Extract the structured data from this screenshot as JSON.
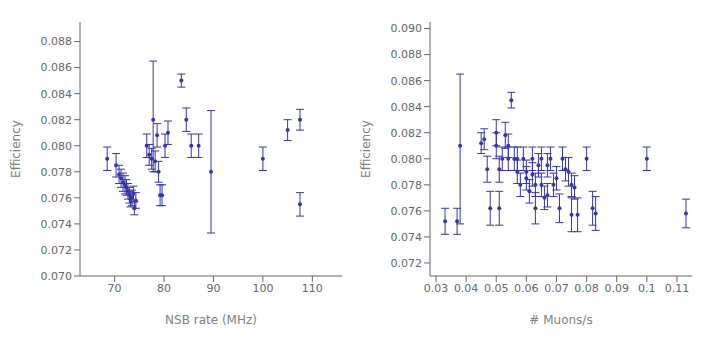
{
  "chart_data": [
    {
      "type": "scatter",
      "x_label": "NSB rate (MHz)",
      "y_label": "Efficiency",
      "xlim": [
        63,
        116
      ],
      "ylim": [
        0.07,
        0.0895
      ],
      "xticks": [
        70,
        80,
        90,
        100,
        110
      ],
      "yticks": [
        {
          "value": 0.07,
          "label": "0.070"
        },
        0.072,
        0.074,
        0.076,
        0.078,
        {
          "value": 0.08,
          "label": "0.080"
        },
        0.082,
        0.084,
        0.086,
        0.088
      ],
      "color": "#3535aa",
      "grid": false,
      "x": [
        68.5,
        70.3,
        70.9,
        71.3,
        71.7,
        72.1,
        72.4,
        72.7,
        73.0,
        73.2,
        73.5,
        73.8,
        74.0,
        74.3,
        76.5,
        77.0,
        77.5,
        77.8,
        78.2,
        78.6,
        78.9,
        79.2,
        79.6,
        80.2,
        80.8,
        83.5,
        84.5,
        85.5,
        87.0,
        89.5,
        100.0,
        105.0,
        107.5,
        107.5
      ],
      "values": [
        0.079,
        0.0785,
        0.0778,
        0.0775,
        0.0772,
        0.077,
        0.0768,
        0.0765,
        0.0762,
        0.0759,
        0.076,
        0.0763,
        0.0752,
        0.0758,
        0.08,
        0.0793,
        0.079,
        0.082,
        0.0788,
        0.0808,
        0.078,
        0.0762,
        0.0762,
        0.08,
        0.081,
        0.085,
        0.082,
        0.08,
        0.08,
        0.078,
        0.079,
        0.0812,
        0.082,
        0.0755
      ],
      "yerr_lo": [
        0.0009,
        0.0009,
        0.0007,
        0.0007,
        0.0007,
        0.0007,
        0.0006,
        0.0006,
        0.0006,
        0.0006,
        0.0006,
        0.0006,
        0.0005,
        0.0006,
        0.0009,
        0.0008,
        0.0008,
        0.004,
        0.0008,
        0.0009,
        0.0008,
        0.0008,
        0.0008,
        0.0009,
        0.0009,
        0.0005,
        0.0009,
        0.0009,
        0.0009,
        0.0047,
        0.0009,
        0.0008,
        0.0008,
        0.0009
      ],
      "yerr_hi": [
        0.0009,
        0.0009,
        0.0007,
        0.0007,
        0.0007,
        0.0007,
        0.0006,
        0.0006,
        0.0006,
        0.0006,
        0.0006,
        0.0006,
        0.0005,
        0.0006,
        0.0009,
        0.0008,
        0.0008,
        0.0045,
        0.0008,
        0.0009,
        0.0008,
        0.0008,
        0.0008,
        0.0009,
        0.0009,
        0.0005,
        0.0009,
        0.0009,
        0.0009,
        0.0047,
        0.0009,
        0.0008,
        0.0008,
        0.0009
      ]
    },
    {
      "type": "scatter",
      "x_label": "# Muons/s",
      "y_label": "Efficiency",
      "xlim": [
        0.028,
        0.115
      ],
      "ylim": [
        0.071,
        0.0905
      ],
      "xticks": [
        0.03,
        0.04,
        0.05,
        0.06,
        0.07,
        0.08,
        0.09,
        0.1,
        0.11
      ],
      "yticks": [
        0.072,
        0.074,
        0.076,
        0.078,
        {
          "value": 0.08,
          "label": "0.080"
        },
        0.082,
        0.084,
        0.086,
        0.088,
        {
          "value": 0.09,
          "label": "0.090"
        }
      ],
      "color": "#3535aa",
      "grid": false,
      "x": [
        0.033,
        0.037,
        0.038,
        0.045,
        0.046,
        0.047,
        0.048,
        0.05,
        0.05,
        0.051,
        0.051,
        0.052,
        0.053,
        0.054,
        0.054,
        0.055,
        0.056,
        0.057,
        0.057,
        0.058,
        0.059,
        0.06,
        0.06,
        0.061,
        0.062,
        0.062,
        0.063,
        0.063,
        0.064,
        0.065,
        0.065,
        0.066,
        0.067,
        0.067,
        0.068,
        0.069,
        0.07,
        0.071,
        0.072,
        0.073,
        0.074,
        0.075,
        0.075,
        0.076,
        0.077,
        0.08,
        0.082,
        0.083,
        0.1,
        0.113
      ],
      "values": [
        0.0752,
        0.0752,
        0.081,
        0.0812,
        0.0815,
        0.0792,
        0.0762,
        0.082,
        0.081,
        0.0792,
        0.0762,
        0.08,
        0.0818,
        0.08,
        0.081,
        0.0845,
        0.08,
        0.079,
        0.08,
        0.078,
        0.08,
        0.0785,
        0.079,
        0.0775,
        0.08,
        0.0788,
        0.0762,
        0.078,
        0.0795,
        0.078,
        0.08,
        0.077,
        0.0772,
        0.0795,
        0.08,
        0.078,
        0.0785,
        0.0762,
        0.08,
        0.0792,
        0.079,
        0.078,
        0.0757,
        0.0778,
        0.0757,
        0.08,
        0.0762,
        0.0758,
        0.08,
        0.0758
      ],
      "yerr_lo": [
        0.001,
        0.001,
        0.006,
        0.0008,
        0.0008,
        0.001,
        0.0013,
        0.001,
        0.001,
        0.001,
        0.0013,
        0.0009,
        0.001,
        0.0009,
        0.0009,
        0.0006,
        0.0009,
        0.0009,
        0.0009,
        0.0009,
        0.0009,
        0.0009,
        0.0009,
        0.0009,
        0.0009,
        0.0009,
        0.0012,
        0.0009,
        0.0009,
        0.0009,
        0.0009,
        0.0009,
        0.0009,
        0.0009,
        0.0009,
        0.0009,
        0.0009,
        0.0011,
        0.0009,
        0.0009,
        0.0011,
        0.0009,
        0.0013,
        0.0009,
        0.0013,
        0.0009,
        0.0013,
        0.0013,
        0.0009,
        0.0011
      ],
      "yerr_hi": [
        0.001,
        0.001,
        0.0055,
        0.0008,
        0.0008,
        0.001,
        0.0013,
        0.001,
        0.001,
        0.001,
        0.0013,
        0.0009,
        0.001,
        0.0009,
        0.0009,
        0.0006,
        0.0009,
        0.0009,
        0.0009,
        0.0009,
        0.0009,
        0.0009,
        0.0009,
        0.0009,
        0.0009,
        0.0009,
        0.0012,
        0.0009,
        0.0009,
        0.0009,
        0.0009,
        0.0009,
        0.0009,
        0.0009,
        0.0009,
        0.0009,
        0.0009,
        0.0011,
        0.0009,
        0.0009,
        0.0011,
        0.0009,
        0.0013,
        0.0009,
        0.0013,
        0.0009,
        0.0013,
        0.0013,
        0.0009,
        0.0011
      ]
    }
  ]
}
